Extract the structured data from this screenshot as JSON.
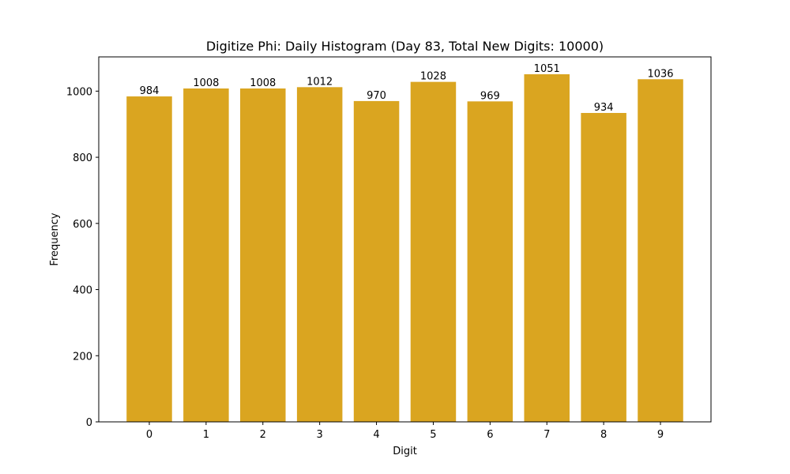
{
  "chart_data": {
    "type": "bar",
    "title": "Digitize Phi: Daily Histogram (Day 83, Total New Digits: 10000)",
    "xlabel": "Digit",
    "ylabel": "Frequency",
    "categories": [
      "0",
      "1",
      "2",
      "3",
      "4",
      "5",
      "6",
      "7",
      "8",
      "9"
    ],
    "values": [
      984,
      1008,
      1008,
      1012,
      970,
      1028,
      969,
      1051,
      934,
      1036
    ],
    "data_labels": [
      "984",
      "1008",
      "1008",
      "1012",
      "970",
      "1028",
      "969",
      "1051",
      "934",
      "1036"
    ],
    "ylim": [
      0,
      1103.55
    ],
    "yticks": [
      0,
      200,
      400,
      600,
      800,
      1000
    ],
    "ytick_labels": [
      "0",
      "200",
      "400",
      "600",
      "800",
      "1000"
    ],
    "grid": false,
    "legend": null,
    "bar_color": "#DAA520"
  }
}
